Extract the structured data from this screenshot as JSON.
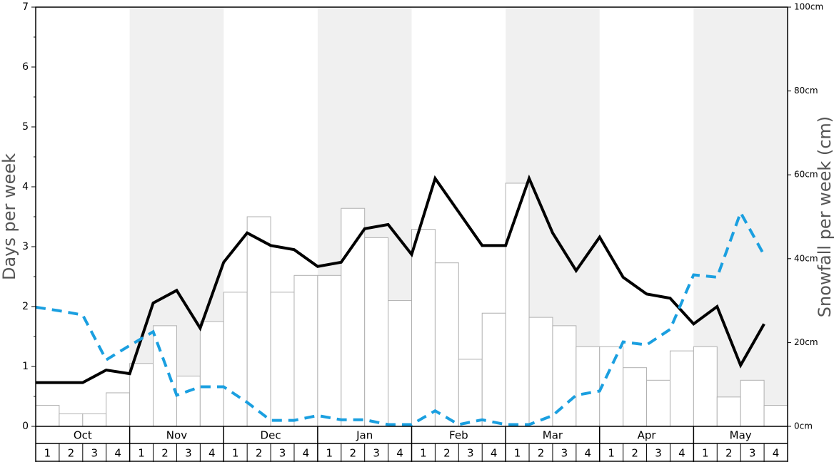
{
  "chart_data": {
    "type": "bar",
    "y_label": "Days per week",
    "y2_label": "Snowfall per week (cm)",
    "months": [
      "Oct",
      "Nov",
      "Dec",
      "Jan",
      "Feb",
      "Mar",
      "Apr",
      "May"
    ],
    "weeks": [
      "1",
      "2",
      "3",
      "4"
    ],
    "ylim": [
      0,
      7
    ],
    "yticks": [
      0,
      1,
      2,
      3,
      4,
      5,
      6,
      7
    ],
    "y2lim": [
      0,
      100
    ],
    "y2ticks": [
      {
        "value": 0,
        "label": "0cm"
      },
      {
        "value": 20,
        "label": "20cm"
      },
      {
        "value": 40,
        "label": "40cm"
      },
      {
        "value": 60,
        "label": "60cm"
      },
      {
        "value": 80,
        "label": "80cm"
      },
      {
        "value": 100,
        "label": "100cm"
      }
    ],
    "shade": "#f0f0f0",
    "series": [
      {
        "type": "bar",
        "axis": "y2",
        "color": "#ffffff",
        "edge": "#b0b0b0",
        "values": [
          5,
          3,
          3,
          8,
          15,
          24,
          12,
          25,
          32,
          50,
          32,
          36,
          36,
          52,
          45,
          30,
          47,
          39,
          16,
          27,
          58,
          26,
          24,
          19,
          19,
          14,
          11,
          18,
          19,
          7,
          11,
          5
        ]
      },
      {
        "type": "line",
        "color": "#000000",
        "values": [
          0.73,
          0.73,
          0.73,
          0.94,
          0.88,
          2.06,
          2.27,
          1.64,
          2.74,
          3.23,
          3.02,
          2.95,
          2.67,
          2.74,
          3.3,
          3.37,
          2.87,
          4.14,
          3.58,
          3.02,
          3.02,
          4.14,
          3.23,
          2.6,
          3.16,
          2.49,
          2.21,
          2.14,
          1.71,
          2.0,
          1.02,
          1.71
        ]
      },
      {
        "type": "line",
        "color": "#1a9fe0",
        "dashed": true,
        "values": [
          1.99,
          1.93,
          1.86,
          1.11,
          1.35,
          1.58,
          0.52,
          0.66,
          0.66,
          0.4,
          0.1,
          0.1,
          0.18,
          0.11,
          0.11,
          0.03,
          0.03,
          0.26,
          0.03,
          0.11,
          0.03,
          0.03,
          0.18,
          0.52,
          0.59,
          1.41,
          1.36,
          1.62,
          2.53,
          2.49,
          3.57,
          2.86
        ]
      }
    ]
  }
}
